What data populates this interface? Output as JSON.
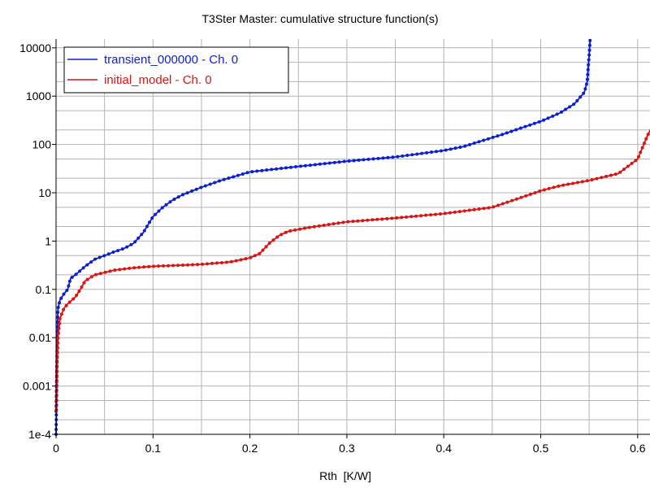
{
  "colors": {
    "background": "#ffffff",
    "grid": "#b4b4b4",
    "axis": "#000000",
    "series_transient": "#0b1fd0",
    "series_initial": "#d91414"
  },
  "chart_data": {
    "type": "line",
    "title": "T3Ster Master: cumulative structure function(s)",
    "xlabel": "Rth  [K/W]",
    "ylabel": "",
    "xlim": [
      0,
      0.62
    ],
    "ylim": [
      0.0001,
      15000
    ],
    "y_scale": "log",
    "grid": true,
    "legend_position": "top-left",
    "x_ticks": [
      {
        "value": 0,
        "label": "0"
      },
      {
        "value": 0.1,
        "label": "0.1"
      },
      {
        "value": 0.2,
        "label": "0.2"
      },
      {
        "value": 0.3,
        "label": "0.3"
      },
      {
        "value": 0.4,
        "label": "0.4"
      },
      {
        "value": 0.5,
        "label": "0.5"
      },
      {
        "value": 0.6,
        "label": "0.6"
      }
    ],
    "y_ticks": [
      {
        "value": 0.0001,
        "label": "1e-4"
      },
      {
        "value": 0.001,
        "label": "0.001"
      },
      {
        "value": 0.01,
        "label": "0.01"
      },
      {
        "value": 0.1,
        "label": "0.1"
      },
      {
        "value": 1,
        "label": "1"
      },
      {
        "value": 10,
        "label": "10"
      },
      {
        "value": 100,
        "label": "100"
      },
      {
        "value": 1000,
        "label": "1000"
      },
      {
        "value": 10000,
        "label": "10000"
      }
    ],
    "series": [
      {
        "name": "transient_000000 - Ch. 0",
        "color": "#0b1fd0",
        "points": [
          [
            0.0,
            0.0001
          ],
          [
            0.0005,
            0.0005
          ],
          [
            0.001,
            0.005
          ],
          [
            0.0015,
            0.02
          ],
          [
            0.002,
            0.04
          ],
          [
            0.004,
            0.06
          ],
          [
            0.008,
            0.08
          ],
          [
            0.012,
            0.1
          ],
          [
            0.015,
            0.17
          ],
          [
            0.02,
            0.2
          ],
          [
            0.03,
            0.3
          ],
          [
            0.04,
            0.42
          ],
          [
            0.05,
            0.5
          ],
          [
            0.06,
            0.6
          ],
          [
            0.07,
            0.7
          ],
          [
            0.08,
            0.9
          ],
          [
            0.09,
            1.5
          ],
          [
            0.095,
            2.2
          ],
          [
            0.1,
            3.2
          ],
          [
            0.11,
            5.0
          ],
          [
            0.12,
            7.0
          ],
          [
            0.13,
            9.0
          ],
          [
            0.15,
            13.0
          ],
          [
            0.17,
            18.0
          ],
          [
            0.2,
            27.0
          ],
          [
            0.25,
            35.0
          ],
          [
            0.3,
            45.0
          ],
          [
            0.35,
            55.0
          ],
          [
            0.4,
            75.0
          ],
          [
            0.42,
            90.0
          ],
          [
            0.44,
            120.0
          ],
          [
            0.46,
            160.0
          ],
          [
            0.48,
            220.0
          ],
          [
            0.5,
            300.0
          ],
          [
            0.52,
            450.0
          ],
          [
            0.535,
            700.0
          ],
          [
            0.545,
            1200.0
          ],
          [
            0.548,
            2000.0
          ],
          [
            0.549,
            4000.0
          ],
          [
            0.55,
            7000.0
          ],
          [
            0.551,
            15000.0
          ]
        ]
      },
      {
        "name": "initial_model - Ch. 0",
        "color": "#d91414",
        "points": [
          [
            0.0,
            0.0003
          ],
          [
            0.0005,
            0.001
          ],
          [
            0.001,
            0.003
          ],
          [
            0.002,
            0.01
          ],
          [
            0.004,
            0.025
          ],
          [
            0.008,
            0.04
          ],
          [
            0.012,
            0.05
          ],
          [
            0.02,
            0.07
          ],
          [
            0.025,
            0.1
          ],
          [
            0.03,
            0.15
          ],
          [
            0.04,
            0.2
          ],
          [
            0.06,
            0.25
          ],
          [
            0.08,
            0.28
          ],
          [
            0.1,
            0.3
          ],
          [
            0.15,
            0.33
          ],
          [
            0.18,
            0.37
          ],
          [
            0.2,
            0.45
          ],
          [
            0.21,
            0.55
          ],
          [
            0.22,
            0.9
          ],
          [
            0.23,
            1.3
          ],
          [
            0.24,
            1.6
          ],
          [
            0.26,
            1.9
          ],
          [
            0.3,
            2.5
          ],
          [
            0.35,
            3.0
          ],
          [
            0.4,
            3.7
          ],
          [
            0.45,
            5.0
          ],
          [
            0.48,
            8.0
          ],
          [
            0.5,
            11.0
          ],
          [
            0.52,
            14.0
          ],
          [
            0.55,
            18.0
          ],
          [
            0.58,
            25.0
          ],
          [
            0.6,
            50.0
          ],
          [
            0.61,
            150.0
          ],
          [
            0.62,
            400.0
          ]
        ]
      }
    ]
  }
}
